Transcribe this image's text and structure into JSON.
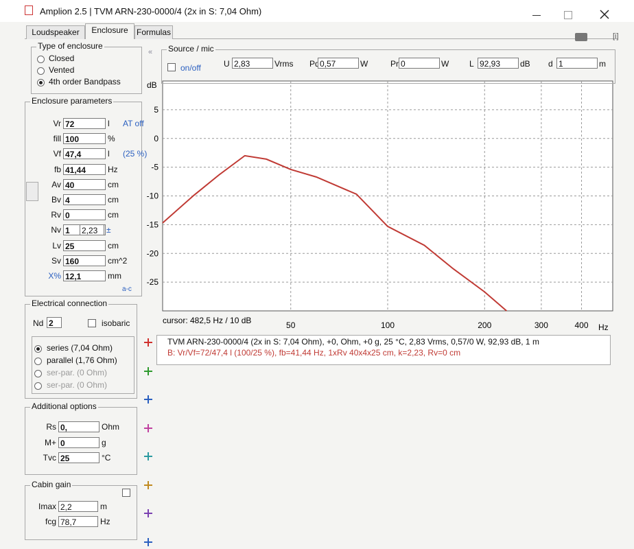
{
  "window": {
    "title": "Amplion 2.5 | TVM ARN-230-0000/4 (2x in S: 7,04 Ohm)"
  },
  "tabs": [
    "Loudspeaker",
    "Enclosure",
    "Formulas"
  ],
  "enclosure_type": {
    "title": "Type of enclosure",
    "options": [
      "Closed",
      "Vented",
      "4th order Bandpass"
    ],
    "selected": 2
  },
  "enclosure_params": {
    "title": "Enclosure parameters",
    "corner": "a-c",
    "fields": [
      {
        "label": "Vr",
        "value": "72",
        "unit": "l",
        "note": "AT off"
      },
      {
        "label": "fill",
        "value": "100",
        "unit": "%"
      },
      {
        "label": "Vf",
        "value": "47,4",
        "unit": "l",
        "note": "(25 %)"
      },
      {
        "label": "fb",
        "value": "41,44",
        "unit": "Hz"
      },
      {
        "label": "Av",
        "value": "40",
        "unit": "cm"
      },
      {
        "label": "Bv",
        "value": "4",
        "unit": "cm"
      },
      {
        "label": "Rv",
        "value": "0",
        "unit": "cm"
      },
      {
        "label": "Nv",
        "value": "1",
        "value2": "2,23",
        "note": "±"
      },
      {
        "label": "Lv",
        "value": "25",
        "unit": "cm"
      },
      {
        "label": "Sv",
        "value": "160",
        "unit": "cm^2"
      },
      {
        "label": "X%",
        "value": "12,1",
        "unit": "mm"
      }
    ]
  },
  "electrical": {
    "title": "Electrical connection",
    "nd_label": "Nd",
    "nd": "2",
    "isobaric": "isobaric",
    "options": [
      "series (7,04 Ohm)",
      "parallel (1,76 Ohm)",
      "ser-par. (0 Ohm)",
      "ser-par. (0 Ohm)"
    ],
    "selected": 0
  },
  "additional": {
    "title": "Additional options",
    "fields": [
      {
        "label": "Rs",
        "value": "0,",
        "unit": "Ohm"
      },
      {
        "label": "M+",
        "value": "0",
        "unit": "g"
      },
      {
        "label": "Tvc",
        "value": "25",
        "unit": "°C"
      }
    ]
  },
  "cabin": {
    "title": "Cabin gain",
    "fields": [
      {
        "label": "Imax",
        "value": "2,2",
        "unit": "m"
      },
      {
        "label": "fcg",
        "value": "78,7",
        "unit": "Hz"
      }
    ]
  },
  "source": {
    "title": "Source / mic",
    "toggle": "on/off",
    "fields": [
      {
        "label": "U",
        "value": "2,83",
        "unit": "Vrms"
      },
      {
        "label": "Pd",
        "value": "0,57",
        "unit": "W"
      },
      {
        "label": "Pr",
        "value": "0",
        "unit": "W"
      },
      {
        "label": "L",
        "value": "92,93",
        "unit": "dB"
      },
      {
        "label": "d",
        "value": "1",
        "unit": "m"
      }
    ]
  },
  "chart_data": {
    "type": "line",
    "y_label": "dB",
    "x_label": "Hz",
    "xscale": "log",
    "grid": true,
    "cursor": "cursor: 482,5 Hz / 10 dB",
    "xlim": [
      20,
      500
    ],
    "xticks": [
      50,
      100,
      200,
      300,
      400
    ],
    "ylim": [
      -30,
      10
    ],
    "yticks": [
      5,
      0,
      -5,
      -10,
      -15,
      -20,
      -25
    ],
    "x": [
      20,
      25,
      30,
      36,
      42,
      50,
      60,
      80,
      100,
      130,
      160,
      200,
      234
    ],
    "series": [
      {
        "color": "#c03a34",
        "values": [
          -14.7,
          -9.9,
          -6.3,
          -3.0,
          -3.6,
          -5.4,
          -6.7,
          -9.7,
          -15.3,
          -18.6,
          -22.7,
          -26.7,
          -30
        ]
      }
    ],
    "legend": [
      "TVM ARN-230-0000/4 (2x in S: 7,04 Ohm), +0, Ohm, +0 g, 25 °C, 2,83 Vrms, 0,57/0 W, 92,93 dB, 1 m",
      "B: Vr/Vf=72/47,4 l (100/25 %), fb=41,44 Hz, 1xRv 40x4x25 cm, k=2,23, Rv=0 cm"
    ]
  },
  "plus_colors": [
    "#d0302c",
    "#2e9a2e",
    "#2a5fc0",
    "#c040a0",
    "#2a9aa0",
    "#c08a20",
    "#7a40b0",
    "#2a5fc0"
  ]
}
